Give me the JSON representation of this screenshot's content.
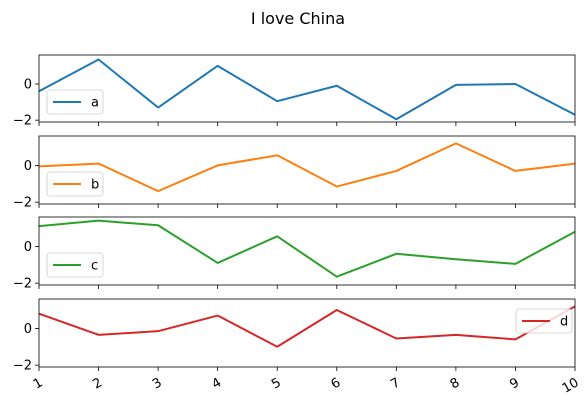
{
  "chart_data": {
    "type": "line",
    "title": "I love China",
    "layout": "4 stacked subplots sharing x axis",
    "x": [
      1,
      2,
      3,
      4,
      5,
      6,
      7,
      8,
      9,
      10
    ],
    "xlim": [
      1,
      10
    ],
    "x_tick_labels": [
      "1",
      "2",
      "3",
      "4",
      "5",
      "6",
      "7",
      "8",
      "9",
      "10"
    ],
    "x_tick_rotation": "rotated ~30 degrees",
    "ylim": [
      -2.1,
      1.6
    ],
    "y_ticks": [
      0,
      -2
    ],
    "y_tick_labels": [
      "0",
      "−2"
    ],
    "grid": false,
    "subplots": [
      {
        "name": "a",
        "color": "#1f77b4",
        "legend_position": "lower-left",
        "values": [
          -0.4,
          1.35,
          -1.3,
          1.0,
          -0.95,
          -0.1,
          -1.95,
          -0.05,
          0.0,
          -1.7
        ]
      },
      {
        "name": "b",
        "color": "#ff7f0e",
        "legend_position": "lower-left",
        "values": [
          -0.05,
          0.1,
          -1.4,
          0.0,
          0.55,
          -1.15,
          -0.3,
          1.2,
          -0.3,
          0.1
        ]
      },
      {
        "name": "c",
        "color": "#2ca02c",
        "legend_position": "lower-left",
        "values": [
          1.1,
          1.4,
          1.15,
          -0.9,
          0.55,
          -1.65,
          -0.4,
          -0.7,
          -0.95,
          0.8
        ]
      },
      {
        "name": "d",
        "color": "#d62728",
        "legend_position": "upper-right",
        "values": [
          0.8,
          -0.35,
          -0.15,
          0.7,
          -1.0,
          1.0,
          -0.55,
          -0.35,
          -0.6,
          1.2
        ]
      }
    ]
  }
}
